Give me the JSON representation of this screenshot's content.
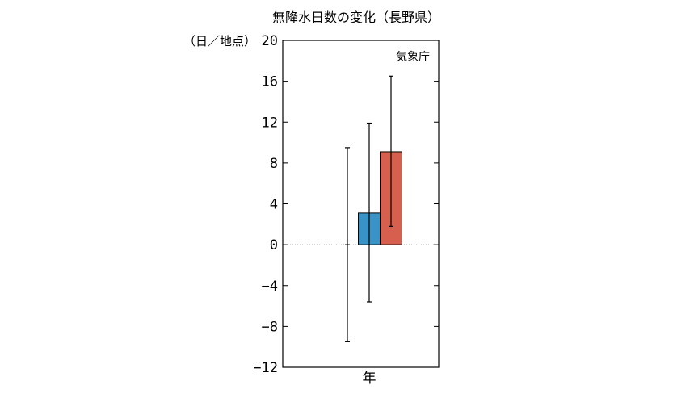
{
  "chart_data": {
    "type": "bar",
    "title": "無降水日数の変化（長野県）",
    "ylabel": "（日／地点）",
    "credit": "気象庁",
    "categories": [
      "年"
    ],
    "ylim": [
      -12,
      20
    ],
    "yticks": [
      20,
      16,
      12,
      8,
      4,
      0,
      -4,
      -8,
      -12
    ],
    "ytick_labels": [
      "20",
      "16",
      "12",
      "8",
      "4",
      "0",
      "−4",
      "−8",
      "−12"
    ],
    "series": [
      {
        "values": [
          0.0
        ],
        "err_low": [
          -9.5
        ],
        "err_high": [
          9.5
        ],
        "color": "#ffffff"
      },
      {
        "values": [
          3.1
        ],
        "err_low": [
          -5.6
        ],
        "err_high": [
          11.9
        ],
        "color": "#3a93c6"
      },
      {
        "values": [
          9.1
        ],
        "err_low": [
          1.8
        ],
        "err_high": [
          16.5
        ],
        "color": "#d6604d"
      }
    ]
  }
}
